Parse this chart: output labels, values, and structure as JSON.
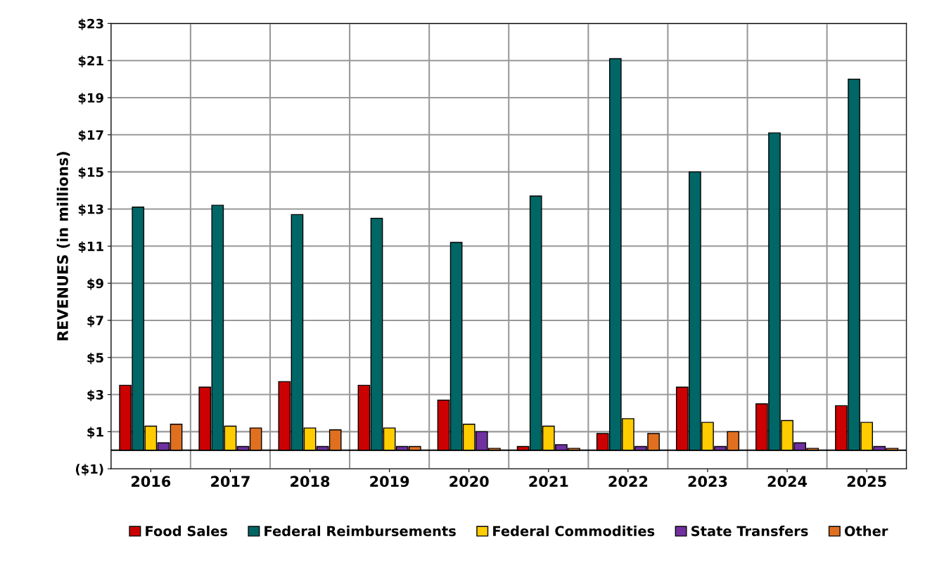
{
  "chart_data": {
    "type": "bar",
    "ylabel": "REVENUES (in millions)",
    "categories": [
      "2016",
      "2017",
      "2018",
      "2019",
      "2020",
      "2021",
      "2022",
      "2023",
      "2024",
      "2025"
    ],
    "series": [
      {
        "name": "Food Sales",
        "color": "#cc0000",
        "values": [
          3.5,
          3.4,
          3.7,
          3.5,
          2.7,
          0.2,
          0.9,
          3.4,
          2.5,
          2.4
        ]
      },
      {
        "name": "Federal Reimbursements",
        "color": "#006666",
        "values": [
          13.1,
          13.2,
          12.7,
          12.5,
          11.2,
          13.7,
          21.1,
          15.0,
          17.1,
          20.0
        ]
      },
      {
        "name": "Federal Commodities",
        "color": "#ffcc00",
        "values": [
          1.3,
          1.3,
          1.2,
          1.2,
          1.4,
          1.3,
          1.7,
          1.5,
          1.6,
          1.5
        ]
      },
      {
        "name": "State Transfers",
        "color": "#7030a0",
        "values": [
          0.4,
          0.2,
          0.2,
          0.2,
          1.0,
          0.3,
          0.2,
          0.2,
          0.4,
          0.2
        ]
      },
      {
        "name": "Other",
        "color": "#e07020",
        "values": [
          1.4,
          1.2,
          1.1,
          0.2,
          0.1,
          0.1,
          0.9,
          1.0,
          0.1,
          0.1
        ]
      }
    ],
    "ylim": [
      -1,
      23
    ],
    "yticks": [
      {
        "value": -1,
        "label": "($1)"
      },
      {
        "value": 1,
        "label": "$1"
      },
      {
        "value": 3,
        "label": "$3"
      },
      {
        "value": 5,
        "label": "$5"
      },
      {
        "value": 7,
        "label": "$7"
      },
      {
        "value": 9,
        "label": "$9"
      },
      {
        "value": 11,
        "label": "$11"
      },
      {
        "value": 13,
        "label": "$13"
      },
      {
        "value": 15,
        "label": "$15"
      },
      {
        "value": 17,
        "label": "$17"
      },
      {
        "value": 19,
        "label": "$19"
      },
      {
        "value": 21,
        "label": "$21"
      },
      {
        "value": 23,
        "label": "$23"
      }
    ],
    "grid": true,
    "legend": "bottom"
  }
}
